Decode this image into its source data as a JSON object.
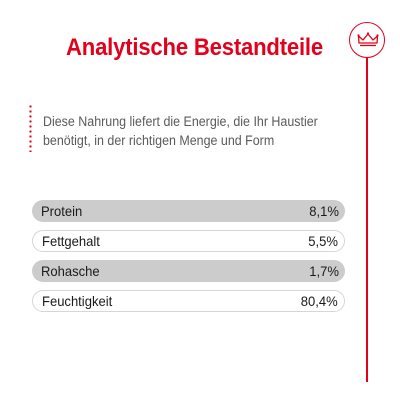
{
  "header": {
    "title": "Analytische Bestandteile",
    "logo_icon": "crown-icon",
    "accent_color": "#e2001a"
  },
  "intro": {
    "text": "Diese Nahrung liefert die Energie, die Ihr Haustier benötigt, in der richtigen Menge und Form"
  },
  "nutrients": [
    {
      "label": "Protein",
      "value": "8,1%"
    },
    {
      "label": "Fettgehalt",
      "value": "5,5%"
    },
    {
      "label": "Rohasche",
      "value": "1,7%"
    },
    {
      "label": "Feuchtigkeit",
      "value": "80,4%"
    }
  ]
}
